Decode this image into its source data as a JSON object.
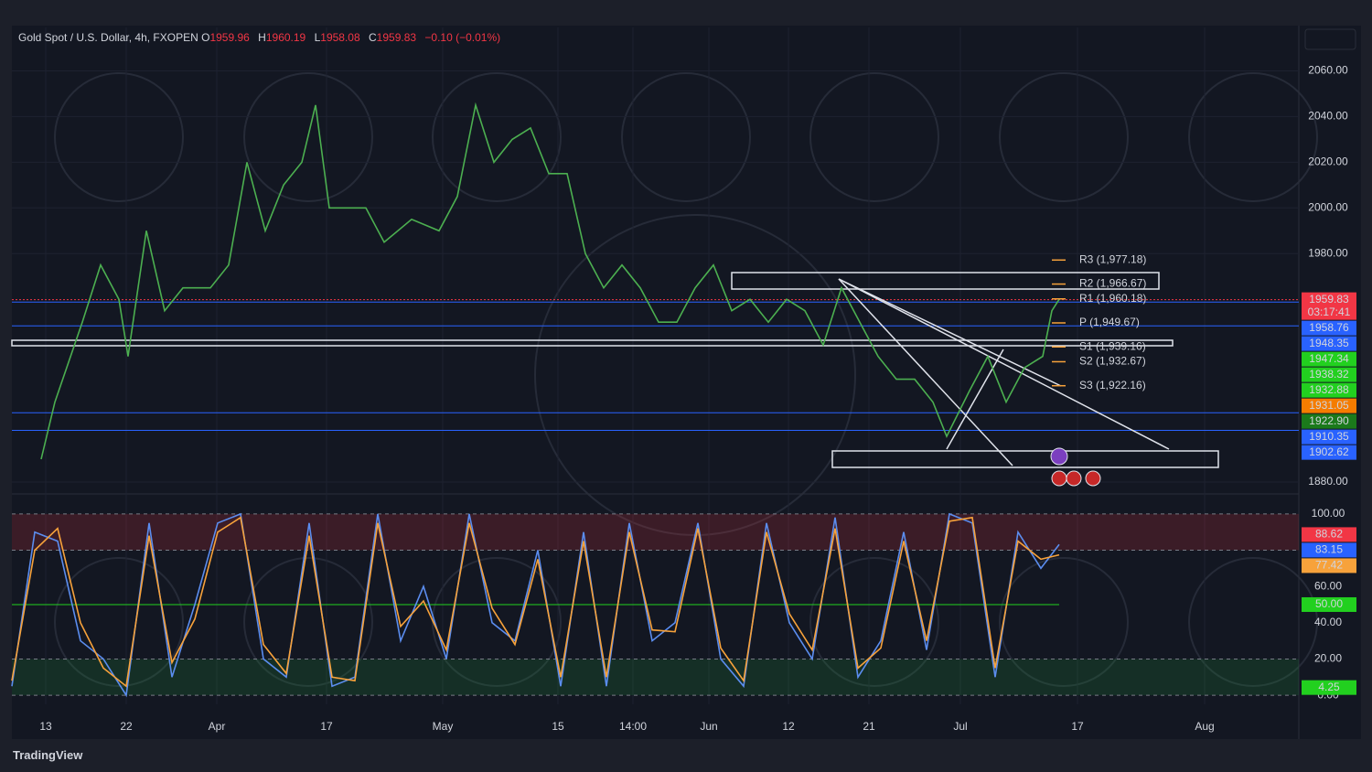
{
  "header": {
    "symbol": "Gold Spot / U.S. Dollar, 4h, FXOPEN",
    "ohlc": [
      {
        "key": "O",
        "value": 1959.96
      },
      {
        "key": "H",
        "value": 1960.19
      },
      {
        "key": "L",
        "value": 1958.08
      },
      {
        "key": "C",
        "value": 1959.83
      }
    ],
    "change": "−0.10 (−0.01%)"
  },
  "footer": {
    "brand": "TradingView"
  },
  "chart_data": [
    {
      "type": "line",
      "xlim": [
        13,
        1420
      ],
      "xticks": [
        {
          "value": 50,
          "label": "13"
        },
        {
          "value": 138,
          "label": "22"
        },
        {
          "value": 237,
          "label": "Apr"
        },
        {
          "value": 357,
          "label": "17"
        },
        {
          "value": 484,
          "label": "May"
        },
        {
          "value": 610,
          "label": "15"
        },
        {
          "value": 692,
          "label": "14:00"
        },
        {
          "value": 775,
          "label": "Jun"
        },
        {
          "value": 862,
          "label": "12"
        },
        {
          "value": 950,
          "label": "21"
        },
        {
          "value": 1050,
          "label": "Jul"
        },
        {
          "value": 1178,
          "label": "17"
        },
        {
          "value": 1317,
          "label": "Aug"
        }
      ],
      "ylim": [
        1876,
        2079
      ],
      "yticks": [
        {
          "value": 2060,
          "label": "2060.00"
        },
        {
          "value": 2040,
          "label": "2040.00"
        },
        {
          "value": 2020,
          "label": "2020.00"
        },
        {
          "value": 2000,
          "label": "2000.00"
        },
        {
          "value": 1980,
          "label": "1980.00"
        },
        {
          "value": 1880,
          "label": "1880.00"
        }
      ],
      "grid": true,
      "x": [
        45,
        60,
        90,
        110,
        130,
        140,
        160,
        180,
        200,
        230,
        250,
        270,
        290,
        310,
        330,
        345,
        360,
        380,
        400,
        420,
        450,
        480,
        500,
        520,
        540,
        560,
        580,
        600,
        620,
        640,
        660,
        680,
        700,
        720,
        740,
        760,
        780,
        800,
        820,
        840,
        860,
        880,
        900,
        920,
        940,
        960,
        980,
        1000,
        1020,
        1035,
        1060,
        1080,
        1100,
        1120,
        1140,
        1150,
        1158
      ],
      "series": [
        {
          "color": "#4caf50",
          "values": [
            1890,
            1915,
            1950,
            1975,
            1960,
            1935,
            1990,
            1955,
            1965,
            1965,
            1975,
            2020,
            1990,
            2010,
            2020,
            2045,
            2000,
            2000,
            2000,
            1985,
            1995,
            1990,
            2005,
            2045,
            2020,
            2030,
            2035,
            2015,
            2015,
            1980,
            1965,
            1975,
            1965,
            1950,
            1950,
            1965,
            1975,
            1955,
            1960,
            1950,
            1960,
            1955,
            1940,
            1965,
            1950,
            1935,
            1925,
            1925,
            1915,
            1900,
            1920,
            1935,
            1915,
            1930,
            1935,
            1955,
            1960
          ]
        }
      ],
      "pivots": [
        {
          "label": "R3 (1,977.18)",
          "value": 1977.18
        },
        {
          "label": "R2 (1,966.67)",
          "value": 1966.67
        },
        {
          "label": "R1 (1,960.18)",
          "value": 1960.18
        },
        {
          "label": "P (1,949.67)",
          "value": 1949.67
        },
        {
          "label": "S1 (1,939.16)",
          "value": 1939.16
        },
        {
          "label": "S2 (1,932.67)",
          "value": 1932.67
        },
        {
          "label": "S3 (1,922.16)",
          "value": 1922.16
        }
      ],
      "pivot_color": "#f7a23b",
      "price_labels": [
        {
          "value": 1959.83,
          "label": "1959.83",
          "color": "#f23645",
          "line": true,
          "countdown": "03:17:41"
        },
        {
          "value": 1958.76,
          "label": "1958.76",
          "color": "#2962ff",
          "line": true
        },
        {
          "value": 1948.35,
          "label": "1948.35",
          "color": "#2962ff",
          "line": true
        },
        {
          "value": 1947.34,
          "label": "1947.34",
          "color": "#22d01f"
        },
        {
          "value": 1938.32,
          "label": "1938.32",
          "color": "#22d01f"
        },
        {
          "value": 1932.88,
          "label": "1932.88",
          "color": "#22d01f"
        },
        {
          "value": 1931.05,
          "label": "1931.05",
          "color": "#f57c00"
        },
        {
          "value": 1922.9,
          "label": "1922.90",
          "color": "#1b7a1b"
        },
        {
          "value": 1910.35,
          "label": "1910.35",
          "color": "#2962ff",
          "line": true
        },
        {
          "value": 1902.62,
          "label": "1902.62",
          "color": "#2962ff",
          "line": true
        }
      ]
    },
    {
      "type": "line",
      "xlim": [
        13,
        1420
      ],
      "ylim": [
        -5,
        108.5
      ],
      "yticks": [
        {
          "value": 100,
          "label": "100.00"
        },
        {
          "value": 60,
          "label": "60.00"
        },
        {
          "value": 40,
          "label": "40.00"
        },
        {
          "value": 20,
          "label": "20.00"
        },
        {
          "value": 0,
          "label": "0.00"
        }
      ],
      "x": [
        13,
        38,
        63,
        88,
        113,
        138,
        163,
        188,
        213,
        238,
        263,
        288,
        313,
        338,
        363,
        388,
        413,
        438,
        463,
        488,
        513,
        538,
        563,
        588,
        613,
        638,
        663,
        688,
        713,
        738,
        763,
        788,
        813,
        838,
        863,
        888,
        913,
        938,
        963,
        988,
        1013,
        1038,
        1063,
        1088,
        1113,
        1138,
        1158
      ],
      "series": [
        {
          "color": "#5b8def",
          "values": [
            5,
            90,
            85,
            30,
            20,
            0,
            95,
            10,
            50,
            95,
            100,
            20,
            10,
            95,
            5,
            10,
            100,
            30,
            60,
            20,
            100,
            40,
            30,
            80,
            5,
            90,
            5,
            95,
            30,
            40,
            95,
            20,
            5,
            95,
            40,
            20,
            98,
            10,
            30,
            90,
            25,
            100,
            95,
            10,
            90,
            70,
            83.15
          ]
        },
        {
          "color": "#f7a23b",
          "values": [
            8,
            80,
            92,
            40,
            15,
            5,
            88,
            18,
            42,
            90,
            98,
            28,
            12,
            88,
            10,
            8,
            95,
            38,
            52,
            25,
            95,
            48,
            28,
            75,
            10,
            85,
            10,
            90,
            36,
            35,
            92,
            26,
            8,
            90,
            45,
            25,
            92,
            15,
            26,
            85,
            30,
            96,
            98,
            15,
            85,
            75,
            77.42
          ]
        }
      ],
      "bands": [
        {
          "range": [
            80,
            100
          ],
          "color": "rgba(242,54,69,0.18)"
        },
        {
          "range": [
            0,
            20
          ],
          "color": "rgba(34,160,60,0.18)"
        }
      ],
      "labels": [
        {
          "value": 88.62,
          "label": "88.62",
          "color": "#f23645"
        },
        {
          "value": 83.15,
          "label": "83.15",
          "color": "#2962ff"
        },
        {
          "value": 77.42,
          "label": "77.42",
          "color": "#f7a23b"
        },
        {
          "value": 50,
          "label": "50.00",
          "color": "#22d01f",
          "line": true
        },
        {
          "value": 4.25,
          "label": "4.25",
          "color": "#22d01f"
        }
      ]
    }
  ]
}
